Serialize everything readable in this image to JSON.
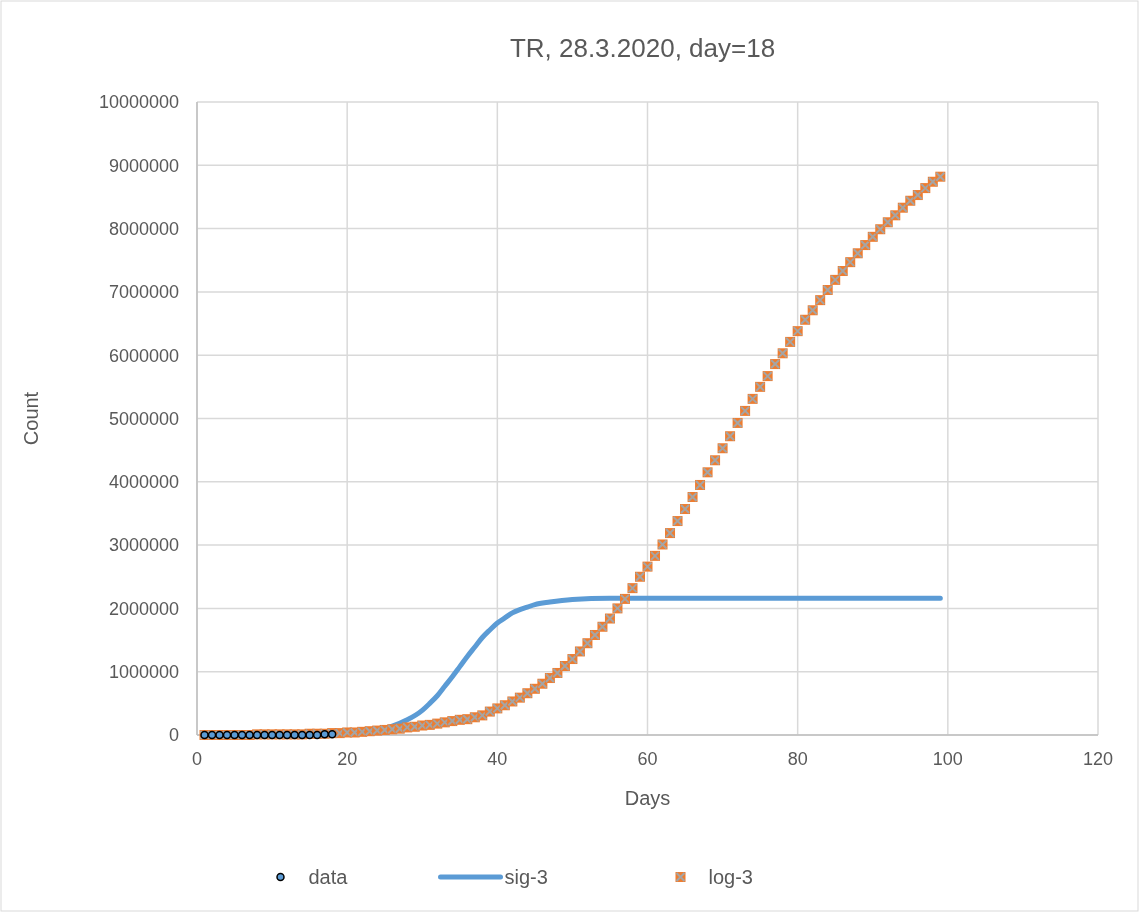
{
  "chart_data": {
    "type": "scatter",
    "title": "TR, 28.3.2020, day=18",
    "xlabel": "Days",
    "ylabel": "Count",
    "xlim": [
      0,
      120
    ],
    "xticks": [
      0,
      20,
      40,
      60,
      80,
      100,
      120
    ],
    "ylim": [
      0,
      10000000
    ],
    "yticks": [
      0,
      1000000,
      2000000,
      3000000,
      4000000,
      5000000,
      6000000,
      7000000,
      8000000,
      9000000,
      10000000
    ],
    "grid": true,
    "legend": "bottom",
    "series": [
      {
        "name": "data",
        "marker": "circle",
        "color": "#5b9bd5",
        "x": [
          1,
          2,
          3,
          4,
          5,
          6,
          7,
          8,
          9,
          10,
          11,
          12,
          13,
          14,
          15,
          16,
          17,
          18
        ],
        "values": [
          0,
          0,
          0,
          0,
          0,
          0,
          0,
          0,
          0,
          0,
          0,
          0,
          0,
          0,
          0,
          0,
          10000,
          10000
        ]
      },
      {
        "name": "sig-3",
        "type": "line",
        "marker": "none",
        "color": "#5b9bd5",
        "x": [
          1,
          5,
          10,
          15,
          20,
          22,
          24,
          26,
          28,
          30,
          31,
          32,
          33,
          34,
          35,
          36,
          37,
          38,
          39,
          40,
          41,
          42,
          43,
          44,
          45,
          47,
          50,
          55,
          60,
          70,
          80,
          90,
          99
        ],
        "values": [
          0,
          0,
          0,
          10000,
          20000,
          40000,
          80000,
          140000,
          240000,
          390000,
          500000,
          620000,
          770000,
          920000,
          1080000,
          1240000,
          1390000,
          1540000,
          1660000,
          1770000,
          1850000,
          1930000,
          1980000,
          2020000,
          2060000,
          2100000,
          2140000,
          2160000,
          2160000,
          2160000,
          2160000,
          2160000,
          2160000
        ]
      },
      {
        "name": "log-3",
        "marker": "square",
        "color": "#ed7d31",
        "x": [
          1,
          2,
          3,
          4,
          5,
          6,
          7,
          8,
          9,
          10,
          11,
          12,
          13,
          14,
          15,
          16,
          17,
          18,
          19,
          20,
          21,
          22,
          23,
          24,
          25,
          26,
          27,
          28,
          29,
          30,
          31,
          32,
          33,
          34,
          35,
          36,
          37,
          38,
          39,
          40,
          41,
          42,
          43,
          44,
          45,
          46,
          47,
          48,
          49,
          50,
          51,
          52,
          53,
          54,
          55,
          56,
          57,
          58,
          59,
          60,
          61,
          62,
          63,
          64,
          65,
          66,
          67,
          68,
          69,
          70,
          71,
          72,
          73,
          74,
          75,
          76,
          77,
          78,
          79,
          80,
          81,
          82,
          83,
          84,
          85,
          86,
          87,
          88,
          89,
          90,
          91,
          92,
          93,
          94,
          95,
          96,
          97,
          98,
          99
        ],
        "values": [
          0,
          0,
          0,
          0,
          0,
          0,
          0,
          10000,
          10000,
          10000,
          10000,
          10000,
          10000,
          10000,
          20000,
          20000,
          20000,
          30000,
          30000,
          40000,
          40000,
          50000,
          60000,
          70000,
          80000,
          90000,
          100000,
          120000,
          130000,
          150000,
          160000,
          180000,
          200000,
          220000,
          240000,
          250000,
          280000,
          310000,
          370000,
          420000,
          470000,
          530000,
          590000,
          660000,
          730000,
          810000,
          900000,
          980000,
          1090000,
          1200000,
          1320000,
          1450000,
          1580000,
          1710000,
          1840000,
          2000000,
          2150000,
          2320000,
          2500000,
          2660000,
          2830000,
          3010000,
          3190000,
          3380000,
          3570000,
          3760000,
          3950000,
          4150000,
          4340000,
          4530000,
          4720000,
          4930000,
          5120000,
          5310000,
          5500000,
          5670000,
          5860000,
          6030000,
          6210000,
          6380000,
          6560000,
          6710000,
          6870000,
          7030000,
          7190000,
          7330000,
          7470000,
          7610000,
          7740000,
          7870000,
          7990000,
          8100000,
          8210000,
          8330000,
          8440000,
          8530000,
          8640000,
          8740000,
          8820000
        ]
      }
    ]
  }
}
